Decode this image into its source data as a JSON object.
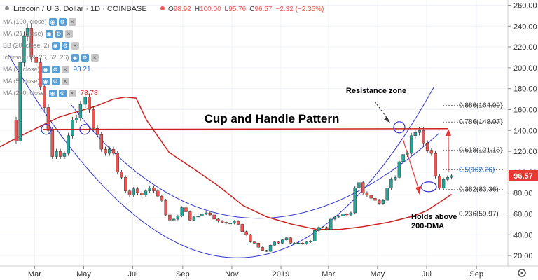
{
  "header": {
    "symbol": "Litecoin / U.S. Dollar · 1D · COINBASE",
    "ohlc": [
      {
        "k": "O",
        "v": "98.92"
      },
      {
        "k": "H",
        "v": "100.00"
      },
      {
        "k": "L",
        "v": "95.76"
      },
      {
        "k": "C",
        "v": "96.57"
      }
    ],
    "change": "−2.32 (−2.35%)"
  },
  "indicators": [
    {
      "label": "MA (100, close)",
      "value": ""
    },
    {
      "label": "MA (21, close)",
      "value": ""
    },
    {
      "label": "BB (20, close, 2)",
      "value": ""
    },
    {
      "label": "Ichimoku (9, 26, 52, 26)",
      "value": ""
    },
    {
      "label": "MA (5, close)",
      "value": "93.21"
    },
    {
      "label": "MA (5, close)",
      "value": ""
    },
    {
      "label": "MA (200, close)",
      "value": "78.78"
    }
  ],
  "chart_data": {
    "type": "line",
    "title": "Cup and Handle Pattern",
    "ylim": [
      10,
      265
    ],
    "y_ticks": [
      20,
      40,
      60,
      80,
      100,
      120,
      140,
      160,
      180,
      200,
      220,
      240,
      260
    ],
    "x_ticks": [
      {
        "label": "Mar",
        "date": "2018-03-01"
      },
      {
        "label": "May",
        "date": "2018-05-01"
      },
      {
        "label": "Jul",
        "date": "2018-07-01"
      },
      {
        "label": "Sep",
        "date": "2018-09-01"
      },
      {
        "label": "Nov",
        "date": "2018-11-01"
      },
      {
        "label": "2019",
        "date": "2019-01-01"
      },
      {
        "label": "Mar",
        "date": "2019-03-01"
      },
      {
        "label": "May",
        "date": "2019-05-01"
      },
      {
        "label": "Jul",
        "date": "2019-07-01"
      },
      {
        "label": "Sep",
        "date": "2019-09-01"
      }
    ],
    "last_price": "96.57",
    "series": [
      {
        "name": "Price",
        "color": "#26a69a",
        "points": [
          [
            "2018-02-01",
            150
          ],
          [
            "2018-02-06",
            130
          ],
          [
            "2018-02-11",
            205
          ],
          [
            "2018-02-16",
            230
          ],
          [
            "2018-02-20",
            238
          ],
          [
            "2018-02-25",
            210
          ],
          [
            "2018-03-03",
            205
          ],
          [
            "2018-03-08",
            182
          ],
          [
            "2018-03-13",
            162
          ],
          [
            "2018-03-18",
            140
          ],
          [
            "2018-03-23",
            115
          ],
          [
            "2018-03-28",
            120
          ],
          [
            "2018-04-02",
            115
          ],
          [
            "2018-04-07",
            118
          ],
          [
            "2018-04-12",
            135
          ],
          [
            "2018-04-17",
            150
          ],
          [
            "2018-04-22",
            152
          ],
          [
            "2018-04-27",
            165
          ],
          [
            "2018-05-03",
            172
          ],
          [
            "2018-05-08",
            160
          ],
          [
            "2018-05-13",
            142
          ],
          [
            "2018-05-18",
            136
          ],
          [
            "2018-05-23",
            122
          ],
          [
            "2018-05-28",
            118
          ],
          [
            "2018-06-02",
            122
          ],
          [
            "2018-06-07",
            118
          ],
          [
            "2018-06-12",
            100
          ],
          [
            "2018-06-17",
            95
          ],
          [
            "2018-06-22",
            82
          ],
          [
            "2018-06-27",
            78
          ],
          [
            "2018-07-02",
            84
          ],
          [
            "2018-07-07",
            80
          ],
          [
            "2018-07-12",
            78
          ],
          [
            "2018-07-17",
            82
          ],
          [
            "2018-07-22",
            85
          ],
          [
            "2018-07-27",
            82
          ],
          [
            "2018-08-01",
            77
          ],
          [
            "2018-08-06",
            73
          ],
          [
            "2018-08-11",
            59
          ],
          [
            "2018-08-16",
            54
          ],
          [
            "2018-08-21",
            55
          ],
          [
            "2018-08-26",
            58
          ],
          [
            "2018-08-31",
            66
          ],
          [
            "2018-09-05",
            62
          ],
          [
            "2018-09-10",
            54
          ],
          [
            "2018-09-15",
            57
          ],
          [
            "2018-09-20",
            58
          ],
          [
            "2018-09-25",
            60
          ],
          [
            "2018-09-30",
            61
          ],
          [
            "2018-10-05",
            59
          ],
          [
            "2018-10-10",
            55
          ],
          [
            "2018-10-15",
            53
          ],
          [
            "2018-10-20",
            52
          ],
          [
            "2018-10-25",
            51
          ],
          [
            "2018-10-30",
            51
          ],
          [
            "2018-11-04",
            53
          ],
          [
            "2018-11-09",
            50
          ],
          [
            "2018-11-14",
            43
          ],
          [
            "2018-11-19",
            40
          ],
          [
            "2018-11-24",
            33
          ],
          [
            "2018-11-29",
            32
          ],
          [
            "2018-12-04",
            28
          ],
          [
            "2018-12-09",
            25
          ],
          [
            "2018-12-14",
            24
          ],
          [
            "2018-12-19",
            30
          ],
          [
            "2018-12-24",
            33
          ],
          [
            "2018-12-29",
            32
          ],
          [
            "2019-01-03",
            35
          ],
          [
            "2019-01-08",
            37
          ],
          [
            "2019-01-13",
            32
          ],
          [
            "2019-01-18",
            32
          ],
          [
            "2019-01-23",
            32
          ],
          [
            "2019-01-28",
            31
          ],
          [
            "2019-02-02",
            33
          ],
          [
            "2019-02-07",
            34
          ],
          [
            "2019-02-12",
            44
          ],
          [
            "2019-02-17",
            47
          ],
          [
            "2019-02-22",
            47
          ],
          [
            "2019-02-27",
            45
          ],
          [
            "2019-03-04",
            55
          ],
          [
            "2019-03-09",
            57
          ],
          [
            "2019-03-14",
            58
          ],
          [
            "2019-03-19",
            60
          ],
          [
            "2019-03-24",
            59
          ],
          [
            "2019-03-29",
            61
          ],
          [
            "2019-04-03",
            85
          ],
          [
            "2019-04-08",
            90
          ],
          [
            "2019-04-13",
            80
          ],
          [
            "2019-04-18",
            78
          ],
          [
            "2019-04-23",
            75
          ],
          [
            "2019-04-28",
            73
          ],
          [
            "2019-05-03",
            70
          ],
          [
            "2019-05-08",
            73
          ],
          [
            "2019-05-13",
            85
          ],
          [
            "2019-05-18",
            93
          ],
          [
            "2019-05-23",
            95
          ],
          [
            "2019-05-28",
            110
          ],
          [
            "2019-06-02",
            117
          ],
          [
            "2019-06-07",
            118
          ],
          [
            "2019-06-12",
            135
          ],
          [
            "2019-06-17",
            138
          ],
          [
            "2019-06-22",
            140
          ],
          [
            "2019-06-27",
            128
          ],
          [
            "2019-07-02",
            121
          ],
          [
            "2019-07-07",
            118
          ],
          [
            "2019-07-12",
            96
          ],
          [
            "2019-07-17",
            85
          ],
          [
            "2019-07-22",
            93
          ],
          [
            "2019-07-27",
            95
          ],
          [
            "2019-08-01",
            96.57
          ]
        ]
      },
      {
        "name": "MA (200, close)",
        "color": "#cc2222",
        "points": [
          [
            "2018-01-01",
            118
          ],
          [
            "2018-02-15",
            136
          ],
          [
            "2018-04-01",
            153
          ],
          [
            "2018-05-15",
            163
          ],
          [
            "2018-06-07",
            170
          ],
          [
            "2018-06-22",
            172
          ],
          [
            "2018-07-05",
            171
          ],
          [
            "2018-07-18",
            150
          ],
          [
            "2018-08-15",
            119
          ],
          [
            "2018-09-15",
            103
          ],
          [
            "2018-10-15",
            87
          ],
          [
            "2018-11-15",
            68
          ],
          [
            "2018-12-15",
            57
          ],
          [
            "2019-01-15",
            50
          ],
          [
            "2019-02-15",
            45
          ],
          [
            "2019-03-15",
            45
          ],
          [
            "2019-04-15",
            48
          ],
          [
            "2019-05-15",
            52
          ],
          [
            "2019-06-15",
            58
          ],
          [
            "2019-07-01",
            63
          ],
          [
            "2019-07-15",
            70
          ],
          [
            "2019-08-01",
            78.78
          ]
        ]
      }
    ],
    "annotations": [
      {
        "text": "Resistance zone"
      },
      {
        "text": "Holds above"
      },
      {
        "text": "200-DMA"
      }
    ],
    "fib_levels": [
      {
        "label": "0.886(164.09)",
        "value": 164.09
      },
      {
        "label": "0.786(148.07)",
        "value": 148.07
      },
      {
        "label": "0.618(121.16)",
        "value": 121.16
      },
      {
        "label": "0.5(102.26)",
        "value": 102.26
      },
      {
        "label": "0.382(83.36)",
        "value": 83.36
      },
      {
        "label": "0.236(59.97)",
        "value": 59.97
      }
    ],
    "resistance_level": 141,
    "colors": {
      "price_up": "#26a69a",
      "price_down": "#ef5350",
      "ma200": "#cc2222",
      "resistance": "#cc2222",
      "arc": "#3333cc",
      "last_price_bg": "#e53935",
      "fib_mid": "#1e6fd6",
      "arrow": "#e53935"
    }
  }
}
